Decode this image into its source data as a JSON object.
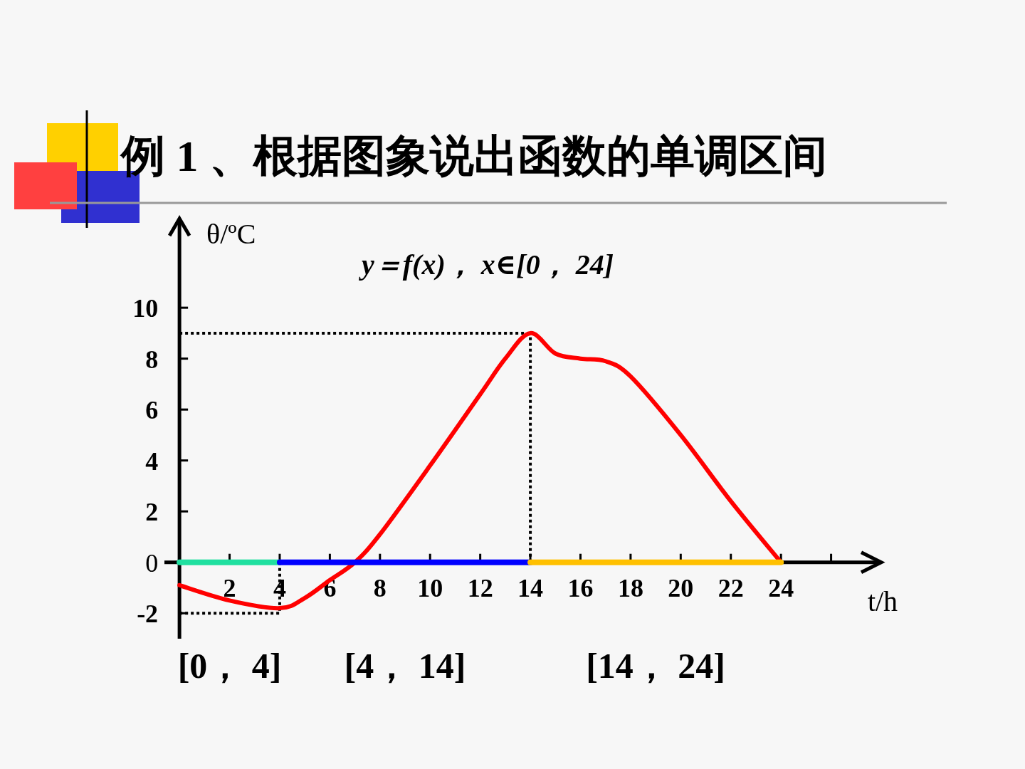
{
  "chart_data": {
    "type": "line",
    "title": "例 1 、根据图象说出函数的单调区间",
    "subtitle": "y＝f(x)， x∈[0， 24]",
    "xlabel": "t/h",
    "ylabel": "θ/ºC",
    "x": [
      0,
      2,
      4,
      5,
      6,
      7,
      8,
      10,
      12,
      13,
      14,
      15,
      16,
      17,
      18,
      20,
      22,
      24
    ],
    "series": [
      {
        "color": "#ff0000",
        "line_style": "solid",
        "values": [
          -0.9,
          -1.5,
          -1.8,
          -1.4,
          -0.7,
          0,
          1.1,
          3.8,
          6.6,
          8.0,
          9,
          8.2,
          8.0,
          7.9,
          7.3,
          5.0,
          2.4,
          0
        ]
      },
      {
        "color": "#20e0a0",
        "x": [
          0,
          4
        ],
        "values": [
          0,
          0
        ]
      },
      {
        "color": "#0000ff",
        "x": [
          4,
          14
        ],
        "values": [
          0,
          0
        ]
      },
      {
        "color": "#ffc000",
        "x": [
          14,
          24
        ],
        "values": [
          0,
          0
        ]
      }
    ],
    "xlim": [
      -0.6,
      28
    ],
    "ylim": [
      -3,
      13.5
    ],
    "xticks": [
      2,
      4,
      6,
      8,
      10,
      12,
      14,
      16,
      18,
      20,
      22,
      24,
      {
        "value": 26,
        "label": null
      }
    ],
    "yticks": [
      -2,
      0,
      2,
      4,
      6,
      8,
      10
    ],
    "ref_lines": [
      {
        "axis": "y",
        "value": 9,
        "line_style": "dotted"
      },
      {
        "axis": "x",
        "value": 14,
        "line_style": "dotted"
      },
      {
        "axis": "y",
        "value": -2,
        "line_style": "dotted"
      },
      {
        "axis": "x",
        "value": 4,
        "line_style": "dotted"
      }
    ],
    "annotations": [
      {
        "text": "[0， 4]",
        "x": 2,
        "y": 0
      },
      {
        "text": "[4， 14]",
        "x": 9,
        "y": 0
      },
      {
        "text": "[14， 24]",
        "x": 19,
        "y": 0
      }
    ],
    "marker": "none"
  }
}
